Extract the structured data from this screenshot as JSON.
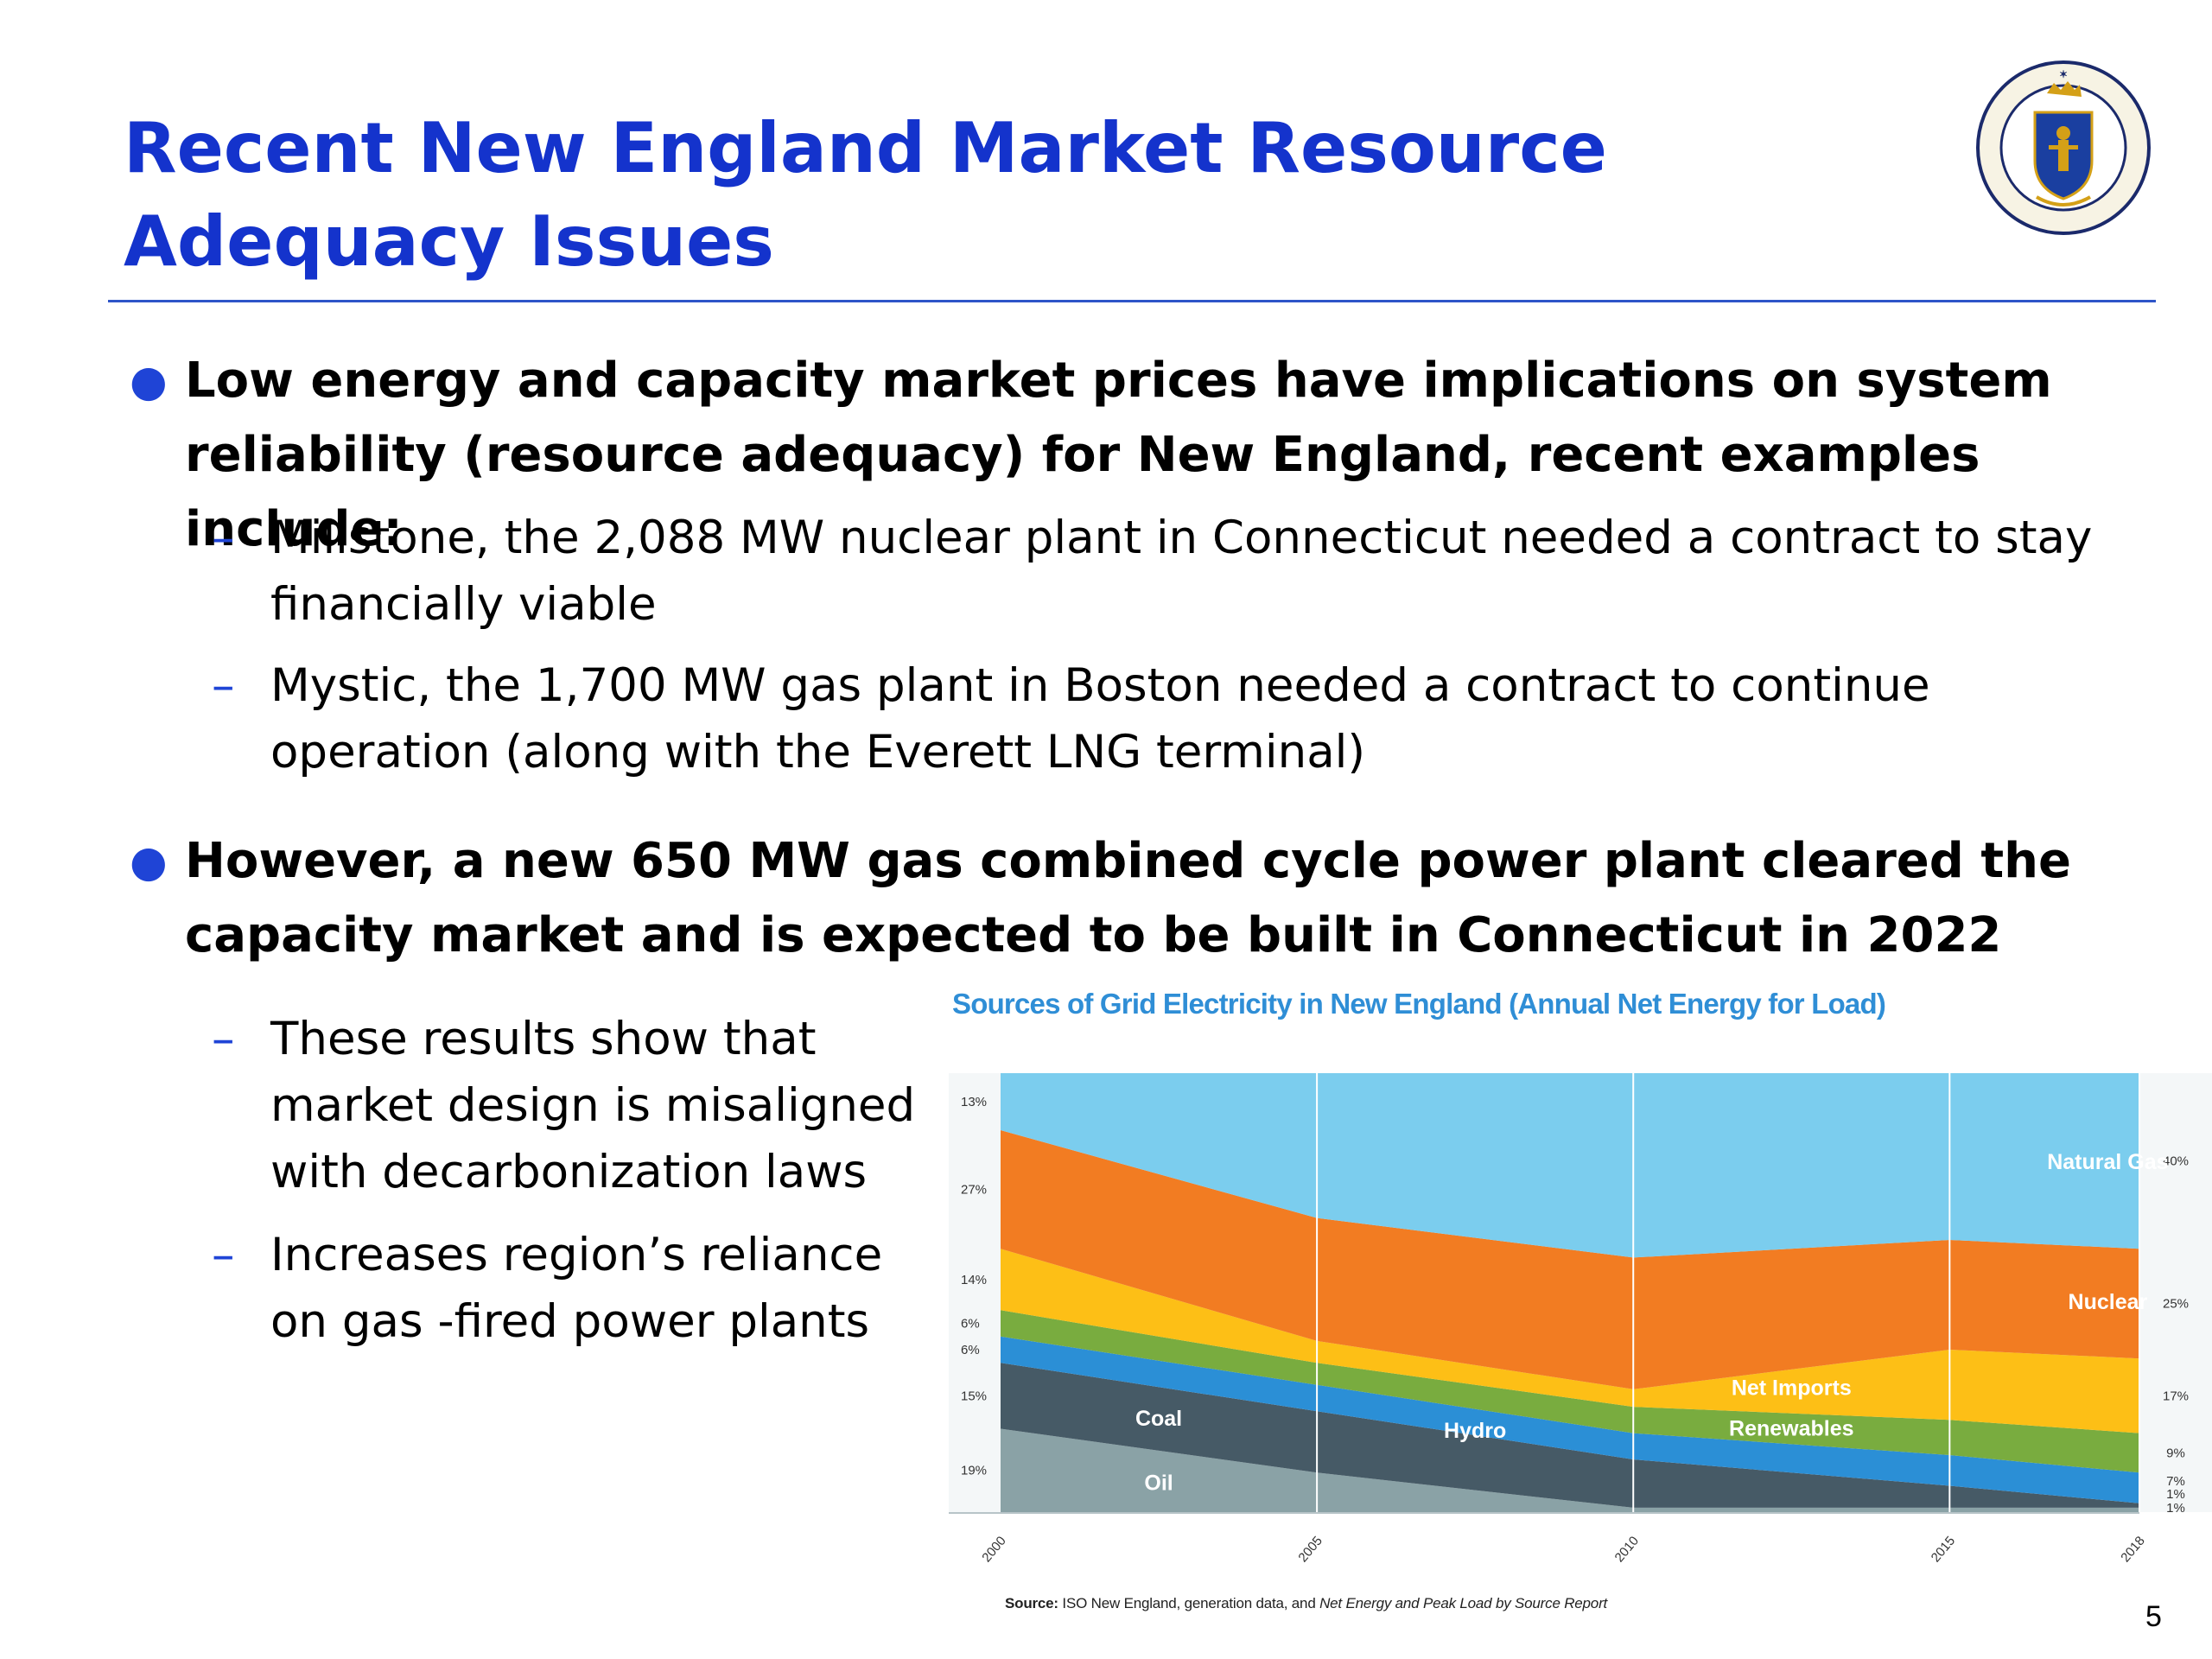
{
  "slide": {
    "title": "Recent New England Market Resource Adequacy Issues",
    "page_number": "5"
  },
  "seal": {
    "text": "SIGILLUM REIPUBLICÆ MASSACHUSETTENSIS",
    "colors": {
      "ring": "#1b2a6b",
      "gold": "#d4a017",
      "shield": "#1a3fa0"
    }
  },
  "bullets": [
    {
      "text": "Low energy and capacity market prices have implications on system reliability (resource adequacy) for New England, recent examples include:",
      "subs": [
        "Millstone, the 2,088 MW nuclear plant in Connecticut needed a contract to stay financially viable",
        "Mystic, the 1,700 MW gas plant in Boston needed a contract to continue operation (along with the Everett LNG terminal)"
      ]
    },
    {
      "text": "However, a new 650 MW gas combined cycle power plant cleared the capacity market and is expected to be built in Connecticut in 2022",
      "subs": [
        "These results show that market design is misaligned with decarbonization laws",
        "Increases region’s reliance on gas -fired power plants"
      ]
    }
  ],
  "chart": {
    "title": "Sources of Grid Electricity in New England (Annual Net Energy for Load)",
    "source_label": "Source:",
    "source_text": " ISO New England, generation data, and ",
    "source_italic": "Net Energy and Peak Load by Source Report"
  },
  "chart_data": {
    "type": "area",
    "stacked": true,
    "title": "Sources of Grid Electricity in New England (Annual Net Energy for Load)",
    "x": [
      "2000",
      "2005",
      "2010",
      "2015",
      "2018"
    ],
    "y_unit": "%",
    "ylim": [
      0,
      100
    ],
    "grid": "vertical lines at each year",
    "series": [
      {
        "name": "Oil",
        "color": "#8aa2a6",
        "values": [
          19,
          9,
          1,
          1,
          1
        ]
      },
      {
        "name": "Coal",
        "color": "#465a66",
        "values": [
          15,
          14,
          11,
          5,
          1
        ]
      },
      {
        "name": "Hydro",
        "color": "#2b8fd6",
        "values": [
          6,
          6,
          6,
          7,
          7
        ]
      },
      {
        "name": "Renewables",
        "color": "#79ac3f",
        "values": [
          6,
          5,
          6,
          8,
          9
        ]
      },
      {
        "name": "Net Imports",
        "color": "#fdbf16",
        "values": [
          14,
          5,
          4,
          16,
          17
        ]
      },
      {
        "name": "Nuclear",
        "color": "#f27c22",
        "values": [
          27,
          28,
          30,
          25,
          25
        ]
      },
      {
        "name": "Natural Gas",
        "color": "#7bcdee",
        "values": [
          13,
          33,
          42,
          38,
          40
        ]
      }
    ],
    "left_labels_2000": [
      "13%",
      "27%",
      "14%",
      "6%",
      "6%",
      "15%",
      "19%"
    ],
    "right_labels_2018": [
      "40%",
      "25%",
      "17%",
      "9%",
      "7%",
      "1%",
      "1%"
    ]
  }
}
